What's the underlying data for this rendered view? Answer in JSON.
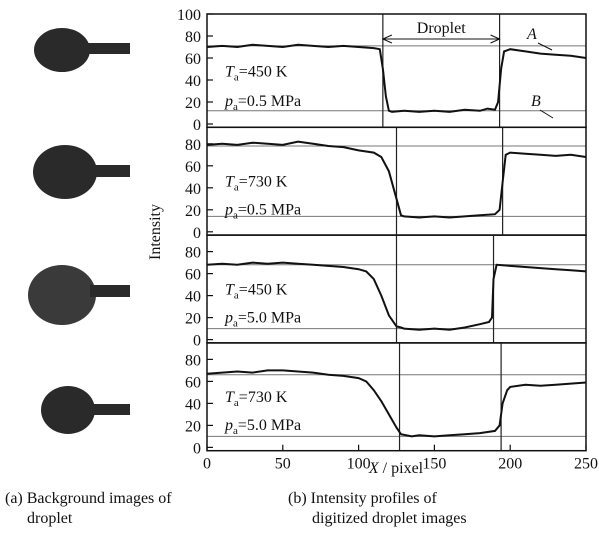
{
  "axes": {
    "ylabel": "Intensity",
    "xlabel_symbol": "X",
    "xlabel_text": " / pixel"
  },
  "captions": {
    "a": [
      "(a) Background images of",
      "droplet"
    ],
    "b": [
      "(b) Intensity profiles of",
      "digitized droplet images"
    ]
  },
  "chart_data": [
    {
      "type": "line",
      "xlim": [
        0,
        250
      ],
      "ylim": [
        -3,
        100
      ],
      "yticks": [
        0,
        20,
        40,
        60,
        80,
        100
      ],
      "color": "#111111",
      "hlines": [
        71,
        12
      ],
      "vlines": [
        116,
        193
      ],
      "span_label": "Droplet",
      "curve_labels": [
        "A",
        "B"
      ],
      "annotations": [
        {
          "symbol": "T",
          "subscript": "a",
          "text": "=450 K"
        },
        {
          "symbol": "p",
          "subscript": "a",
          "text": "=0.5 MPa"
        }
      ],
      "x": [
        0,
        10,
        20,
        30,
        40,
        50,
        60,
        70,
        80,
        90,
        100,
        110,
        114,
        116,
        118,
        120,
        122,
        130,
        140,
        150,
        160,
        170,
        180,
        185,
        190,
        192,
        194,
        196,
        200,
        210,
        220,
        230,
        240,
        250
      ],
      "values": [
        70,
        71,
        70,
        72,
        71,
        70,
        72,
        71,
        70,
        71,
        70,
        69,
        68,
        50,
        25,
        12,
        11,
        12,
        11,
        12,
        11,
        13,
        12,
        14,
        13,
        20,
        50,
        66,
        68,
        66,
        64,
        63,
        62,
        60
      ]
    },
    {
      "type": "line",
      "xlim": [
        0,
        250
      ],
      "ylim": [
        -3,
        95
      ],
      "yticks": [
        0,
        20,
        40,
        60,
        80
      ],
      "color": "#111111",
      "hlines": [
        78,
        14
      ],
      "vlines": [
        125,
        195
      ],
      "annotations": [
        {
          "symbol": "T",
          "subscript": "a",
          "text": "=730 K"
        },
        {
          "symbol": "p",
          "subscript": "a",
          "text": "=0.5 MPa"
        }
      ],
      "x": [
        0,
        10,
        20,
        30,
        40,
        50,
        60,
        70,
        80,
        90,
        100,
        110,
        115,
        120,
        125,
        128,
        130,
        140,
        150,
        160,
        170,
        180,
        190,
        193,
        195,
        197,
        200,
        210,
        220,
        230,
        240,
        250
      ],
      "values": [
        79,
        80,
        79,
        81,
        80,
        79,
        82,
        80,
        78,
        77,
        74,
        72,
        68,
        55,
        30,
        15,
        14,
        13,
        14,
        13,
        14,
        15,
        16,
        20,
        45,
        70,
        72,
        71,
        70,
        69,
        70,
        68
      ]
    },
    {
      "type": "line",
      "xlim": [
        0,
        250
      ],
      "ylim": [
        -3,
        95
      ],
      "yticks": [
        0,
        20,
        40,
        60,
        80
      ],
      "color": "#111111",
      "hlines": [
        68,
        10
      ],
      "vlines": [
        125,
        189
      ],
      "annotations": [
        {
          "symbol": "T",
          "subscript": "a",
          "text": "=450 K"
        },
        {
          "symbol": "p",
          "subscript": "a",
          "text": "=5.0 MPa"
        }
      ],
      "x": [
        0,
        10,
        20,
        30,
        40,
        50,
        60,
        70,
        80,
        90,
        100,
        105,
        110,
        115,
        120,
        125,
        128,
        130,
        140,
        150,
        160,
        170,
        180,
        186,
        188,
        189,
        191,
        200,
        210,
        220,
        230,
        240,
        250
      ],
      "values": [
        68,
        69,
        68,
        70,
        69,
        70,
        69,
        68,
        67,
        66,
        64,
        62,
        55,
        40,
        22,
        12,
        11,
        10,
        9,
        10,
        9,
        11,
        14,
        16,
        20,
        55,
        68,
        67,
        66,
        65,
        64,
        63,
        62
      ]
    },
    {
      "type": "line",
      "xlim": [
        0,
        250
      ],
      "ylim": [
        -3,
        95
      ],
      "yticks": [
        0,
        20,
        40,
        60,
        80
      ],
      "xticks": [
        0,
        50,
        100,
        150,
        200,
        250
      ],
      "color": "#111111",
      "hlines": [
        66,
        10
      ],
      "vlines": [
        127,
        194
      ],
      "annotations": [
        {
          "symbol": "T",
          "subscript": "a",
          "text": "=730 K"
        },
        {
          "symbol": "p",
          "subscript": "a",
          "text": "=5.0 MPa"
        }
      ],
      "x": [
        0,
        10,
        20,
        30,
        40,
        50,
        60,
        70,
        80,
        90,
        100,
        105,
        110,
        115,
        120,
        125,
        128,
        135,
        140,
        150,
        160,
        170,
        180,
        190,
        193,
        195,
        198,
        200,
        210,
        220,
        230,
        240,
        250
      ],
      "values": [
        67,
        68,
        69,
        68,
        70,
        70,
        69,
        68,
        66,
        65,
        63,
        60,
        52,
        42,
        30,
        18,
        12,
        10,
        11,
        10,
        11,
        12,
        13,
        15,
        20,
        40,
        52,
        55,
        57,
        56,
        57,
        58,
        59
      ]
    }
  ]
}
